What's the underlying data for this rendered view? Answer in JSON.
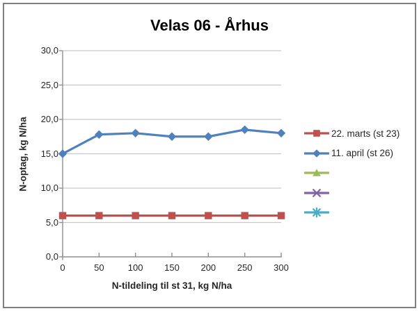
{
  "window": {
    "border_color": "#7f7f7f",
    "background": "#ffffff"
  },
  "chart_data": {
    "type": "line",
    "title": "Velas 06 - Århus",
    "xlabel": "N-tildeling til st 31, kg N/ha",
    "ylabel": "N-optag, kg N/ha",
    "xlim": [
      0,
      300
    ],
    "ylim": [
      0,
      30
    ],
    "x_ticks": [
      0,
      50,
      100,
      150,
      200,
      250,
      300
    ],
    "x_tick_labels": [
      "0",
      "50",
      "100",
      "150",
      "200",
      "250",
      "300"
    ],
    "y_ticks": [
      0,
      5,
      10,
      15,
      20,
      25,
      30
    ],
    "y_tick_labels": [
      "0,0",
      "5,0",
      "10,0",
      "15,0",
      "20,0",
      "25,0",
      "30,0"
    ],
    "grid": "horizontal",
    "legend_position": "right",
    "x": [
      0,
      50,
      100,
      150,
      200,
      250,
      300
    ],
    "series": [
      {
        "name": "22. marts (st 23)",
        "color": "#C0504D",
        "marker": "square",
        "values": [
          6.0,
          6.0,
          6.0,
          6.0,
          6.0,
          6.0,
          6.0
        ]
      },
      {
        "name": "11. april (st 26)",
        "color": "#4F81BD",
        "marker": "diamond",
        "values": [
          15.0,
          17.8,
          18.0,
          17.5,
          17.5,
          18.5,
          18.0
        ]
      },
      {
        "name": "",
        "color": "#9BBB59",
        "marker": "triangle",
        "values": []
      },
      {
        "name": "",
        "color": "#8064A2",
        "marker": "x",
        "values": []
      },
      {
        "name": "",
        "color": "#4BACC6",
        "marker": "asterisk",
        "values": []
      }
    ],
    "colors": {
      "gridline": "#C6C6C6",
      "axis": "#8F8F8F",
      "text": "#262626",
      "title": "#000000"
    }
  }
}
